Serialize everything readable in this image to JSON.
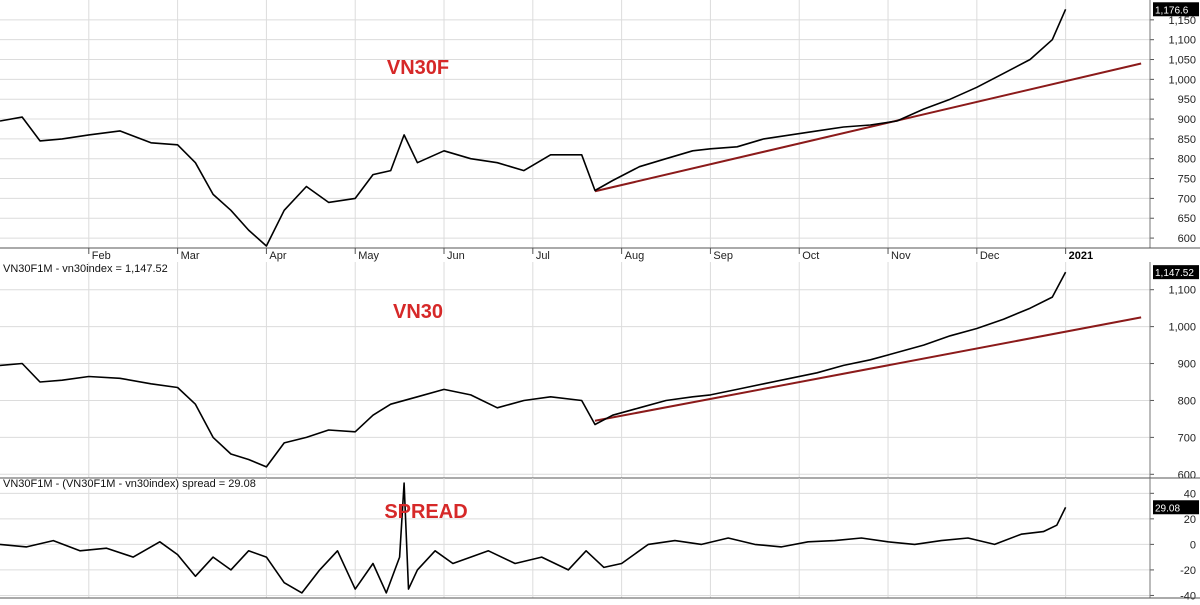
{
  "colors": {
    "series": "#000000",
    "trend": "#8b1a1a",
    "label": "#d62828",
    "grid": "#dcdcdc",
    "badge": "#000000"
  },
  "chart_data": [
    {
      "type": "line",
      "title": "VN30F",
      "caption": "",
      "last_value_label": "1,176.6",
      "ylim": [
        575,
        1200
      ],
      "y_ticks": [
        600,
        650,
        700,
        750,
        800,
        850,
        900,
        950,
        1000,
        1050,
        1100,
        1150
      ],
      "y_tick_labels": [
        "600",
        "650",
        "700",
        "750",
        "800",
        "850",
        "900",
        "950",
        "1,000",
        "1,050",
        "1,100",
        "1,150"
      ],
      "x_tick_labels": [
        "Feb",
        "Mar",
        "Apr",
        "May",
        "Jun",
        "Jul",
        "Aug",
        "Sep",
        "Oct",
        "Nov",
        "Dec",
        "2021"
      ],
      "x_ticks": [
        1,
        2,
        3,
        4,
        5,
        6,
        7,
        8,
        9,
        10,
        11,
        12
      ],
      "series": [
        {
          "x": [
            0,
            0.25,
            0.45,
            0.7,
            1,
            1.35,
            1.7,
            2,
            2.2,
            2.4,
            2.6,
            2.8,
            3,
            3.2,
            3.45,
            3.7,
            4,
            4.2,
            4.4,
            4.55,
            4.7,
            5,
            5.3,
            5.6,
            5.9,
            6.2,
            6.55,
            6.7,
            6.9,
            7.2,
            7.5,
            7.8,
            8,
            8.3,
            8.6,
            8.9,
            9.2,
            9.5,
            9.8,
            10.1,
            10.4,
            10.7,
            11,
            11.3,
            11.6,
            11.85,
            12
          ],
          "y": [
            895,
            905,
            845,
            850,
            860,
            870,
            840,
            835,
            790,
            710,
            670,
            620,
            580,
            670,
            730,
            690,
            700,
            760,
            770,
            860,
            790,
            820,
            800,
            790,
            770,
            810,
            810,
            720,
            745,
            780,
            800,
            820,
            825,
            830,
            850,
            860,
            870,
            880,
            885,
            895,
            925,
            950,
            980,
            1015,
            1050,
            1100,
            1176.6
          ]
        }
      ],
      "trend_line": {
        "x": [
          6.7,
          12.85
        ],
        "y": [
          718,
          1040
        ]
      }
    },
    {
      "type": "line",
      "title": "VN30",
      "caption": "VN30F1M - vn30index = 1,147.52",
      "last_value_label": "1,147.52",
      "ylim": [
        590,
        1175
      ],
      "y_ticks": [
        600,
        700,
        800,
        900,
        1000,
        1100
      ],
      "y_tick_labels": [
        "600",
        "700",
        "800",
        "900",
        "1,000",
        "1,100"
      ],
      "series": [
        {
          "x": [
            0,
            0.25,
            0.45,
            0.7,
            1,
            1.35,
            1.7,
            2,
            2.2,
            2.4,
            2.6,
            2.8,
            3,
            3.2,
            3.45,
            3.7,
            4,
            4.2,
            4.4,
            4.7,
            5,
            5.3,
            5.6,
            5.9,
            6.2,
            6.55,
            6.7,
            6.9,
            7.2,
            7.5,
            7.8,
            8,
            8.3,
            8.6,
            8.9,
            9.2,
            9.5,
            9.8,
            10.1,
            10.4,
            10.7,
            11,
            11.3,
            11.6,
            11.85,
            12
          ],
          "y": [
            895,
            900,
            850,
            855,
            865,
            860,
            845,
            835,
            790,
            700,
            655,
            640,
            620,
            685,
            700,
            720,
            715,
            760,
            790,
            810,
            830,
            815,
            780,
            800,
            810,
            800,
            735,
            760,
            780,
            800,
            810,
            815,
            830,
            845,
            860,
            875,
            895,
            910,
            930,
            950,
            975,
            995,
            1020,
            1050,
            1080,
            1147.52
          ]
        }
      ],
      "trend_line": {
        "x": [
          6.7,
          12.85
        ],
        "y": [
          745,
          1025
        ]
      }
    },
    {
      "type": "line",
      "title": "SPREAD",
      "caption": "VN30F1M - (VN30F1M - vn30index) spread = 29.08",
      "last_value_label": "29.08",
      "ylim": [
        -42,
        52
      ],
      "y_ticks": [
        -40,
        -20,
        0,
        20,
        40
      ],
      "y_tick_labels": [
        "-40",
        "-20",
        "0",
        "20",
        "40"
      ],
      "series": [
        {
          "x": [
            0,
            0.3,
            0.6,
            0.9,
            1.2,
            1.5,
            1.8,
            2.0,
            2.2,
            2.4,
            2.6,
            2.8,
            3.0,
            3.2,
            3.4,
            3.6,
            3.8,
            4.0,
            4.2,
            4.35,
            4.5,
            4.55,
            4.6,
            4.7,
            4.9,
            5.1,
            5.3,
            5.5,
            5.8,
            6.1,
            6.4,
            6.6,
            6.8,
            7.0,
            7.3,
            7.6,
            7.9,
            8.2,
            8.5,
            8.8,
            9.1,
            9.4,
            9.7,
            10.0,
            10.3,
            10.6,
            10.9,
            11.2,
            11.5,
            11.75,
            11.9,
            12.0
          ],
          "y": [
            0,
            -2,
            3,
            -5,
            -3,
            -10,
            2,
            -8,
            -25,
            -10,
            -20,
            -5,
            -10,
            -30,
            -38,
            -20,
            -5,
            -35,
            -15,
            -38,
            -10,
            48,
            -35,
            -20,
            -5,
            -15,
            -10,
            -5,
            -15,
            -10,
            -20,
            -5,
            -18,
            -15,
            0,
            3,
            0,
            5,
            0,
            -2,
            2,
            3,
            5,
            2,
            0,
            3,
            5,
            0,
            8,
            10,
            15,
            29.08
          ]
        }
      ]
    }
  ]
}
